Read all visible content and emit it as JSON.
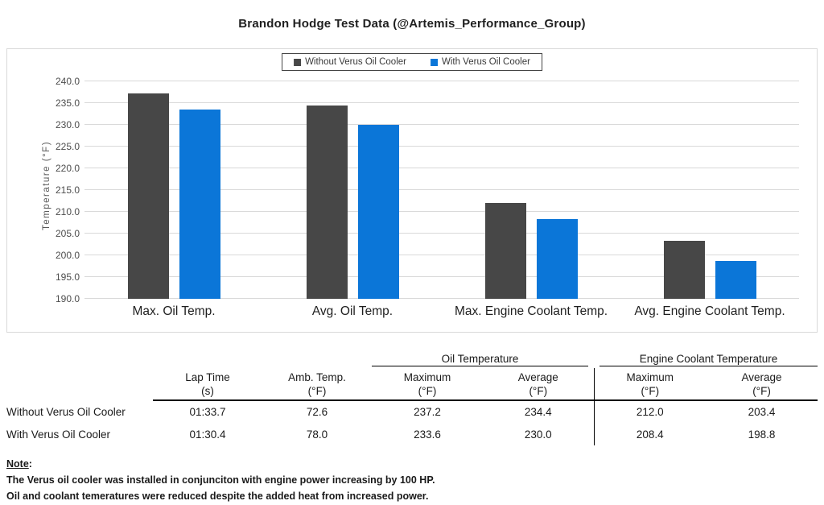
{
  "chart_data": {
    "type": "bar",
    "title": "Brandon Hodge Test Data (@Artemis_Performance_Group)",
    "categories": [
      "Max. Oil Temp.",
      "Avg. Oil Temp.",
      "Max. Engine Coolant Temp.",
      "Avg. Engine Coolant Temp."
    ],
    "series": [
      {
        "name": "Without Verus Oil Cooler",
        "color": "#474747",
        "values": [
          237.2,
          234.4,
          212.0,
          203.4
        ]
      },
      {
        "name": "With Verus Oil Cooler",
        "color": "#0b76d8",
        "values": [
          233.6,
          230.0,
          208.4,
          198.8
        ]
      }
    ],
    "xlabel": "",
    "ylabel": "Temperature (°F)",
    "ylim": [
      190,
      240
    ],
    "yticks": [
      "190.0",
      "195.0",
      "200.0",
      "205.0",
      "210.0",
      "215.0",
      "220.0",
      "225.0",
      "230.0",
      "235.0",
      "240.0"
    ],
    "grid": true,
    "legend_position": "top",
    "gridline_color": "#d9d9d9"
  },
  "table": {
    "groups": [
      {
        "label": "Oil Temperature"
      },
      {
        "label": "Engine Coolant Temperature"
      }
    ],
    "columns": [
      {
        "line1": "Lap Time",
        "line2": "(s)"
      },
      {
        "line1": "Amb. Temp.",
        "line2": "(°F)"
      },
      {
        "line1": "Maximum",
        "line2": "(°F)"
      },
      {
        "line1": "Average",
        "line2": "(°F)"
      },
      {
        "line1": "Maximum",
        "line2": "(°F)"
      },
      {
        "line1": "Average",
        "line2": "(°F)"
      }
    ],
    "rows": [
      {
        "label": "Without Verus Oil Cooler",
        "values": [
          "01:33.7",
          "72.6",
          "237.2",
          "234.4",
          "212.0",
          "203.4"
        ]
      },
      {
        "label": "With Verus Oil Cooler",
        "values": [
          "01:30.4",
          "78.0",
          "233.6",
          "230.0",
          "208.4",
          "198.8"
        ]
      }
    ]
  },
  "note": {
    "label": "Note",
    "suffix": ":",
    "lines": [
      "The Verus oil cooler was installed in conjunciton with engine power increasing by 100 HP.",
      "Oil and coolant temeratures were reduced despite the added heat from increased power."
    ]
  }
}
